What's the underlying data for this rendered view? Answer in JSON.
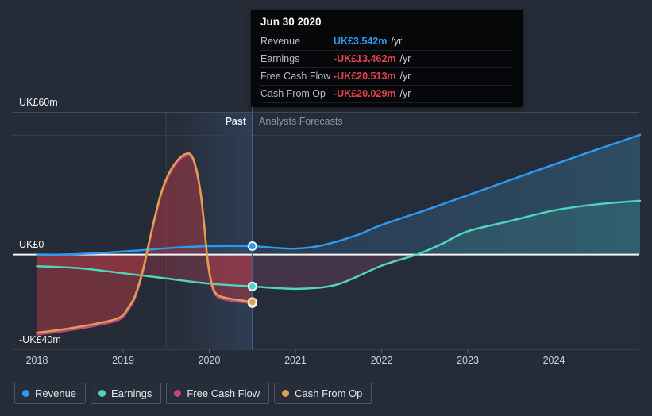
{
  "sections": {
    "past": "Past",
    "forecast": "Analysts Forecasts"
  },
  "tooltip": {
    "date": "Jun 30 2020",
    "rows": [
      {
        "label": "Revenue",
        "value": "UK£3.542m",
        "suffix": "/yr",
        "color": "#2e9bf3"
      },
      {
        "label": "Earnings",
        "value": "-UK£13.462m",
        "suffix": "/yr",
        "color": "#e4434e"
      },
      {
        "label": "Free Cash Flow",
        "value": "-UK£20.513m",
        "suffix": "/yr",
        "color": "#e4434e"
      },
      {
        "label": "Cash From Op",
        "value": "-UK£20.029m",
        "suffix": "/yr",
        "color": "#e4434e"
      }
    ]
  },
  "legend": [
    {
      "label": "Revenue",
      "color": "#2d9af2"
    },
    {
      "label": "Earnings",
      "color": "#50d5ba"
    },
    {
      "label": "Free Cash Flow",
      "color": "#c04580"
    },
    {
      "label": "Cash From Op",
      "color": "#dfa14f"
    }
  ],
  "chart_data": {
    "type": "line",
    "title": "Past and forecast Revenue, Earnings, Free Cash Flow and Cash From Op",
    "x_domain": [
      2018,
      2025
    ],
    "y_domain": [
      -40,
      60
    ],
    "x_ticks": [
      2018,
      2019,
      2020,
      2021,
      2022,
      2023,
      2024
    ],
    "y_ticks": [
      {
        "label": "UK£60m",
        "value": 60
      },
      {
        "label": "UK£0",
        "value": 0
      },
      {
        "label": "-UK£40m",
        "value": -40
      }
    ],
    "today": 2020.5,
    "past_band_start": 2019.5,
    "units": "UK£ millions per year",
    "series": [
      {
        "name": "Revenue",
        "color": "#2d9af2",
        "marker_value": 3.542,
        "past": [
          [
            2018,
            -0.2
          ],
          [
            2018.4,
            0.1
          ],
          [
            2018.8,
            0.8
          ],
          [
            2019.2,
            1.8
          ],
          [
            2019.6,
            2.9
          ],
          [
            2019.95,
            3.5
          ],
          [
            2020.2,
            3.65
          ],
          [
            2020.5,
            3.542
          ]
        ],
        "forecast": [
          [
            2020.75,
            2.9
          ],
          [
            2021,
            2.5
          ],
          [
            2021.3,
            3.8
          ],
          [
            2021.7,
            8
          ],
          [
            2022,
            12.5
          ],
          [
            2022.5,
            18.6
          ],
          [
            2023,
            25
          ],
          [
            2023.5,
            31.5
          ],
          [
            2024,
            38
          ],
          [
            2024.5,
            44.3
          ],
          [
            2025,
            50.5
          ]
        ]
      },
      {
        "name": "Earnings",
        "color": "#50d5ba",
        "marker_value": -13.462,
        "past": [
          [
            2018,
            -4.9
          ],
          [
            2018.5,
            -5.8
          ],
          [
            2019,
            -7.9
          ],
          [
            2019.5,
            -10.1
          ],
          [
            2020,
            -12.3
          ],
          [
            2020.5,
            -13.462
          ]
        ],
        "forecast": [
          [
            2020.8,
            -14.2
          ],
          [
            2021.1,
            -14.4
          ],
          [
            2021.5,
            -12.5
          ],
          [
            2022,
            -4.7
          ],
          [
            2022.41,
            0
          ],
          [
            2022.7,
            4.5
          ],
          [
            2023,
            9.8
          ],
          [
            2023.5,
            14.2
          ],
          [
            2024,
            18.6
          ],
          [
            2024.5,
            21.2
          ],
          [
            2025,
            22.7
          ]
        ]
      },
      {
        "name": "Free Cash Flow",
        "color": "#c04580",
        "marker_value": -20.513,
        "past": [
          [
            2018,
            -33.8
          ],
          [
            2018.3,
            -32.4
          ],
          [
            2018.6,
            -30.6
          ],
          [
            2018.9,
            -28.2
          ],
          [
            2019,
            -26.3
          ],
          [
            2019.05,
            -23.8
          ],
          [
            2019.12,
            -19.8
          ],
          [
            2019.18,
            -13.8
          ],
          [
            2019.24,
            -5.8
          ],
          [
            2019.3,
            4.2
          ],
          [
            2019.37,
            15.2
          ],
          [
            2019.45,
            26.2
          ],
          [
            2019.55,
            34.7
          ],
          [
            2019.65,
            39.7
          ],
          [
            2019.74,
            41.8
          ],
          [
            2019.8,
            40.7
          ],
          [
            2019.85,
            35.2
          ],
          [
            2019.9,
            25.2
          ],
          [
            2019.94,
            12.2
          ],
          [
            2019.98,
            -2.8
          ],
          [
            2020.02,
            -11.8
          ],
          [
            2020.06,
            -16.3
          ],
          [
            2020.12,
            -18.3
          ],
          [
            2020.25,
            -19.5
          ],
          [
            2020.4,
            -20.2
          ],
          [
            2020.5,
            -20.513
          ]
        ],
        "forecast": []
      },
      {
        "name": "Cash From Op",
        "color": "#dfa14f",
        "marker_value": -20.029,
        "past": [
          [
            2018,
            -33
          ],
          [
            2018.3,
            -31.6
          ],
          [
            2018.6,
            -29.8
          ],
          [
            2018.9,
            -27.4
          ],
          [
            2019,
            -25.5
          ],
          [
            2019.05,
            -23
          ],
          [
            2019.12,
            -19
          ],
          [
            2019.18,
            -13
          ],
          [
            2019.24,
            -5
          ],
          [
            2019.3,
            5
          ],
          [
            2019.37,
            16
          ],
          [
            2019.45,
            27
          ],
          [
            2019.55,
            35.5
          ],
          [
            2019.65,
            40.5
          ],
          [
            2019.74,
            42.6
          ],
          [
            2019.8,
            41.5
          ],
          [
            2019.85,
            36
          ],
          [
            2019.9,
            26
          ],
          [
            2019.94,
            13
          ],
          [
            2019.98,
            -2
          ],
          [
            2020.02,
            -11
          ],
          [
            2020.06,
            -15.5
          ],
          [
            2020.12,
            -17.5
          ],
          [
            2020.25,
            -18.7
          ],
          [
            2020.4,
            -19.5
          ],
          [
            2020.5,
            -20.029
          ]
        ],
        "forecast": []
      }
    ]
  }
}
